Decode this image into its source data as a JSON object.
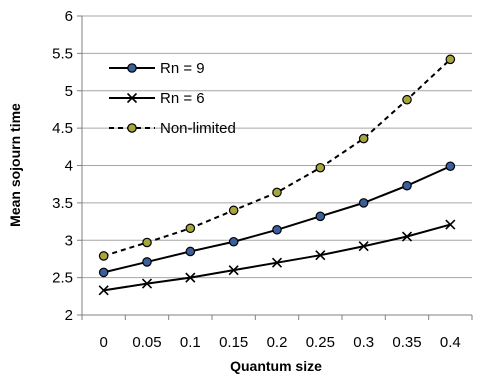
{
  "chart_data": {
    "type": "line",
    "title": "",
    "xlabel": "Quantum size",
    "ylabel": "Mean sojourn time",
    "x": [
      "0",
      "0.05",
      "0.1",
      "0.15",
      "0.2",
      "0.25",
      "0.3",
      "0.35",
      "0.4"
    ],
    "y_ticks": [
      "2",
      "2.5",
      "3",
      "3.5",
      "4",
      "4.5",
      "5",
      "5.5",
      "6"
    ],
    "ylim": [
      2,
      6
    ],
    "grid": "horizontal",
    "legend_position": "top-left",
    "series": [
      {
        "name": "Rn = 9",
        "marker": "circle",
        "line": "solid",
        "marker_color": "#3a5f9a",
        "values": [
          2.57,
          2.71,
          2.85,
          2.98,
          3.14,
          3.32,
          3.5,
          3.73,
          3.99
        ]
      },
      {
        "name": "Rn = 6",
        "marker": "x",
        "line": "solid",
        "marker_color": "#000000",
        "values": [
          2.33,
          2.42,
          2.5,
          2.6,
          2.7,
          2.8,
          2.92,
          3.05,
          3.21
        ]
      },
      {
        "name": "Non-limited",
        "marker": "circle",
        "line": "dashed",
        "marker_color": "#a6a63a",
        "values": [
          2.79,
          2.97,
          3.16,
          3.4,
          3.64,
          3.97,
          4.36,
          4.88,
          5.42
        ]
      }
    ]
  }
}
